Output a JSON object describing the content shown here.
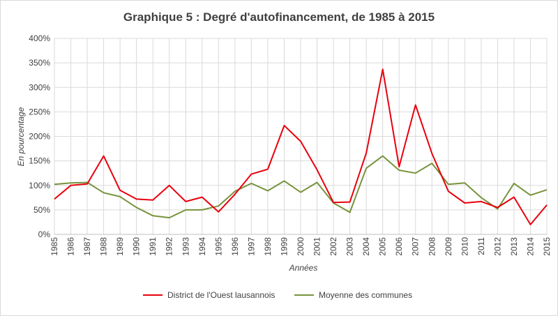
{
  "chart_data": {
    "type": "line",
    "title": "Graphique 5 : Degré d'autofinancement, de 1985 à 2015",
    "xlabel": "Années",
    "ylabel": "En pourcentage",
    "ylim": [
      0,
      400
    ],
    "yticks": [
      "0%",
      "50%",
      "100%",
      "150%",
      "200%",
      "250%",
      "300%",
      "350%",
      "400%"
    ],
    "grid": "horizontal and vertical",
    "legend_position": "bottom",
    "categories": [
      "1985",
      "1986",
      "1987",
      "1988",
      "1989",
      "1990",
      "1991",
      "1992",
      "1993",
      "1994",
      "1995",
      "1996",
      "1997",
      "1998",
      "1999",
      "2000",
      "2001",
      "2002",
      "2003",
      "2004",
      "2005",
      "2006",
      "2007",
      "2008",
      "2009",
      "2010",
      "2011",
      "2012",
      "2013",
      "2014",
      "2015"
    ],
    "series": [
      {
        "name": "District de l'Ouest lausannois",
        "color": "#e8000d",
        "values": [
          72,
          100,
          103,
          160,
          90,
          72,
          70,
          100,
          67,
          76,
          46,
          82,
          123,
          133,
          222,
          190,
          132,
          65,
          66,
          166,
          337,
          138,
          264,
          165,
          88,
          64,
          67,
          55,
          76,
          20,
          60
        ]
      },
      {
        "name": "Moyenne des communes",
        "color": "#77933c",
        "values": [
          102,
          105,
          106,
          85,
          77,
          55,
          38,
          34,
          50,
          50,
          58,
          88,
          104,
          89,
          109,
          86,
          106,
          64,
          45,
          135,
          160,
          131,
          125,
          145,
          102,
          105,
          75,
          52,
          104,
          80,
          91
        ]
      }
    ]
  }
}
